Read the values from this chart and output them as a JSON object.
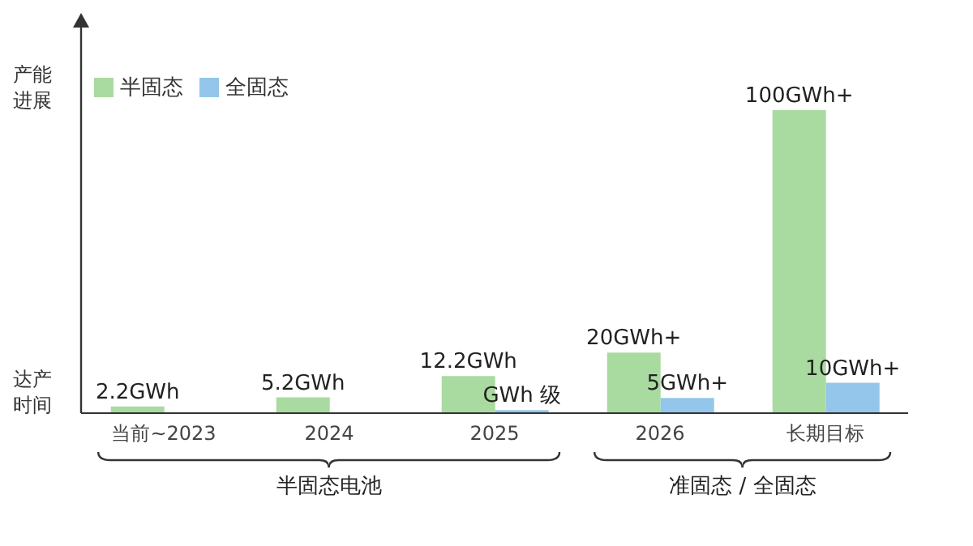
{
  "chart_data": {
    "type": "bar",
    "ylabel": "产能进展",
    "categories": [
      "当前~2023",
      "2024",
      "2025",
      "2026",
      "长期目标"
    ],
    "series": [
      {
        "name": "半固态",
        "color": "#a9dba0",
        "values": [
          2.2,
          5.2,
          12.2,
          20,
          100
        ],
        "value_labels": [
          "2.2GWh",
          "5.2GWh",
          "12.2GWh",
          "20GWh+",
          "100GWh+"
        ]
      },
      {
        "name": "全固态",
        "color": "#93c6ea",
        "values": [
          null,
          null,
          1,
          5,
          10
        ],
        "value_labels": [
          null,
          null,
          "GWh 级",
          "5GWh+",
          "10GWh+"
        ]
      }
    ],
    "legend": "top left",
    "grid": false,
    "annotations": [
      "达产时间",
      "半固态电池",
      "准固态 / 全固态"
    ]
  }
}
